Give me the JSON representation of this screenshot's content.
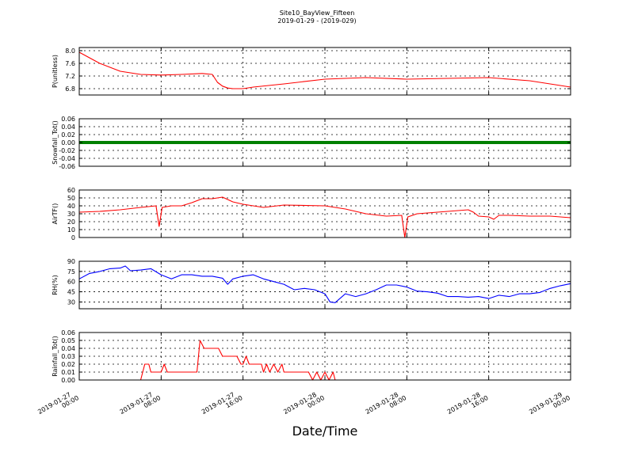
{
  "figure": {
    "title_line1": "Site10_BayView_Fifteen",
    "title_line2": "2019-01-29 - (2019-029)",
    "xlabel": "Date/Time"
  },
  "chart_data": [
    {
      "type": "line",
      "ylabel": "P(unitless)",
      "color": "#ff0000",
      "ylim": [
        6.6,
        8.1
      ],
      "yticks": [
        6.8,
        7.2,
        7.6,
        8.0
      ],
      "ytick_labels": [
        "6.8",
        "7.2",
        "7.6",
        "8.0"
      ],
      "x_hours": [
        0,
        2,
        4,
        6,
        8,
        10,
        12,
        13,
        13.5,
        14,
        14.5,
        15,
        16,
        17,
        20,
        24,
        28,
        32,
        40,
        44,
        48
      ],
      "values": [
        7.95,
        7.6,
        7.35,
        7.25,
        7.23,
        7.25,
        7.28,
        7.25,
        7.0,
        6.88,
        6.82,
        6.8,
        6.8,
        6.85,
        6.95,
        7.1,
        7.15,
        7.1,
        7.15,
        7.05,
        6.85
      ]
    },
    {
      "type": "line",
      "ylabel": "Snowfall_Tot()",
      "color": "#008000",
      "ylim": [
        -0.06,
        0.06
      ],
      "yticks": [
        -0.06,
        -0.04,
        -0.02,
        0.0,
        0.02,
        0.04,
        0.06
      ],
      "ytick_labels": [
        "-0.06",
        "-0.04",
        "-0.02",
        "0.00",
        "0.02",
        "0.04",
        "0.06"
      ],
      "x_hours": [
        0,
        48
      ],
      "values": [
        0.0,
        0.0
      ]
    },
    {
      "type": "line",
      "ylabel": "AirTF()",
      "color": "#ff0000",
      "ylim": [
        0,
        60
      ],
      "yticks": [
        0,
        10,
        20,
        30,
        40,
        50,
        60
      ],
      "ytick_labels": [
        "0",
        "10",
        "20",
        "30",
        "40",
        "50",
        "60"
      ],
      "x_hours": [
        0,
        2,
        4,
        6,
        7.5,
        7.8,
        8.1,
        9,
        10,
        11,
        12,
        13,
        14,
        15,
        16,
        17,
        18,
        20,
        24,
        26,
        28,
        30,
        31.5,
        31.8,
        32.1,
        33,
        34,
        36,
        38,
        38.5,
        39,
        40,
        40.5,
        41,
        42,
        44,
        46,
        48
      ],
      "values": [
        32,
        33,
        35,
        38,
        40,
        14,
        38,
        40,
        40,
        44,
        49,
        49,
        51,
        45,
        42,
        40,
        38,
        41,
        40,
        36,
        30,
        27,
        28,
        0,
        26,
        30,
        31,
        33,
        35,
        32,
        27,
        26,
        23,
        28,
        28,
        27,
        27,
        25
      ]
    },
    {
      "type": "line",
      "ylabel": "RH(%)",
      "color": "#0000ff",
      "ylim": [
        20,
        90
      ],
      "yticks": [
        30,
        45,
        60,
        75,
        90
      ],
      "ytick_labels": [
        "30",
        "45",
        "60",
        "75",
        "90"
      ],
      "x_hours": [
        0,
        1,
        2,
        3,
        4,
        4.5,
        5,
        6,
        7,
        8,
        9,
        10,
        11,
        12,
        13,
        14,
        14.5,
        15,
        16,
        17,
        18,
        19,
        20,
        21,
        22,
        23,
        24,
        24.5,
        25,
        26,
        27,
        28,
        29,
        30,
        31,
        32,
        33,
        34,
        35,
        36,
        37,
        38,
        39,
        40,
        41,
        42,
        43,
        44,
        45,
        46,
        47,
        48
      ],
      "values": [
        64,
        72,
        75,
        79,
        80,
        83,
        76,
        77,
        79,
        70,
        64,
        70,
        70,
        68,
        68,
        65,
        56,
        64,
        68,
        70,
        64,
        60,
        56,
        48,
        50,
        48,
        42,
        30,
        29,
        42,
        38,
        42,
        48,
        55,
        55,
        52,
        46,
        45,
        43,
        38,
        38,
        37,
        38,
        35,
        40,
        38,
        42,
        42,
        44,
        50,
        54,
        57
      ]
    },
    {
      "type": "line",
      "ylabel": "Rainfall_Tot()",
      "color": "#ff0000",
      "ylim": [
        0,
        0.06
      ],
      "yticks": [
        0.0,
        0.01,
        0.02,
        0.03,
        0.04,
        0.05,
        0.06
      ],
      "ytick_labels": [
        "0.00",
        "0.01",
        "0.02",
        "0.03",
        "0.04",
        "0.05",
        "0.06"
      ],
      "x_hours": [
        0,
        6.0,
        6.4,
        6.8,
        7.0,
        8.0,
        8.3,
        8.6,
        9.0,
        11.0,
        11.5,
        11.8,
        12.2,
        12.5,
        13.0,
        13.6,
        14.0,
        15.0,
        15.4,
        15.8,
        16.0,
        16.3,
        16.6,
        17.0,
        17.4,
        17.8,
        18.0,
        18.3,
        18.6,
        19.0,
        19.4,
        19.8,
        20.0,
        21.0,
        22.0,
        22.4,
        22.8,
        23.2,
        23.6,
        24.0,
        24.4,
        24.8,
        25.0,
        25.4,
        48
      ],
      "values": [
        0,
        0,
        0.02,
        0.02,
        0.01,
        0.01,
        0.02,
        0.01,
        0.01,
        0.01,
        0.01,
        0.05,
        0.04,
        0.04,
        0.04,
        0.04,
        0.03,
        0.03,
        0.03,
        0.02,
        0.02,
        0.03,
        0.02,
        0.02,
        0.02,
        0.02,
        0.01,
        0.02,
        0.01,
        0.02,
        0.01,
        0.02,
        0.01,
        0.01,
        0.01,
        0.01,
        0.0,
        0.01,
        0.0,
        0.01,
        0.0,
        0.01,
        0.0,
        0.0,
        0.0
      ]
    }
  ],
  "x_axis": {
    "x_range_hours": [
      0,
      48
    ],
    "ticks_hours": [
      0,
      8,
      16,
      24,
      32,
      40,
      48
    ],
    "tick_labels": [
      [
        "2019-01-27",
        "00:00"
      ],
      [
        "2019-01-27",
        "08:00"
      ],
      [
        "2019-01-27",
        "16:00"
      ],
      [
        "2019-01-28",
        "00:00"
      ],
      [
        "2019-01-28",
        "08:00"
      ],
      [
        "2019-01-28",
        "16:00"
      ],
      [
        "2019-01-29",
        "00:00"
      ]
    ]
  }
}
